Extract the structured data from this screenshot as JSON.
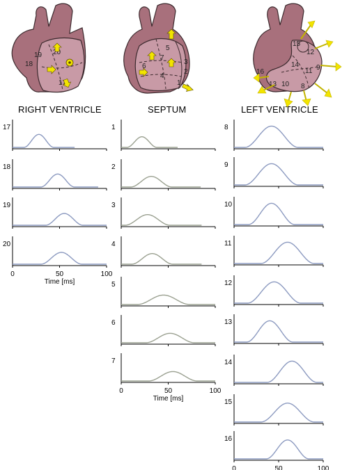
{
  "titles": {
    "right": "RIGHT VENTRICLE",
    "septum": "SEPTUM",
    "left": "LEFT VENTRICLE"
  },
  "axis": {
    "xlabel": "Time [ms]",
    "ticks": [
      "0",
      "50",
      "100"
    ],
    "xlim": [
      0,
      100
    ]
  },
  "colors": {
    "heart_body": "#a8707c",
    "heart_region": "#c89aa6",
    "outline": "#3c2a2e",
    "arrow": "#f2e400",
    "curve_blue": "#8c9ac0",
    "curve_gray": "#9aa090"
  },
  "hearts": {
    "right": {
      "labels": [
        "17",
        "18",
        "19",
        "20"
      ]
    },
    "septum": {
      "labels": [
        "1",
        "2",
        "3",
        "4",
        "5",
        "6",
        "7"
      ]
    },
    "left": {
      "labels": [
        "8",
        "9",
        "10",
        "11",
        "12",
        "13",
        "14",
        "15",
        "16"
      ]
    }
  },
  "chart_data": [
    {
      "type": "line",
      "group": "RIGHT VENTRICLE",
      "xlabel": "Time [ms]",
      "xlim": [
        0,
        100
      ],
      "series": [
        {
          "name": "17",
          "peak_ms": 28,
          "width_ms": 16,
          "amp": 0.55
        },
        {
          "name": "18",
          "peak_ms": 48,
          "width_ms": 18,
          "amp": 0.55
        },
        {
          "name": "19",
          "peak_ms": 55,
          "width_ms": 20,
          "amp": 0.5
        },
        {
          "name": "20",
          "peak_ms": 52,
          "width_ms": 22,
          "amp": 0.5
        }
      ]
    },
    {
      "type": "line",
      "group": "SEPTUM",
      "xlabel": "Time [ms]",
      "xlim": [
        0,
        100
      ],
      "series": [
        {
          "name": "1",
          "peak_ms": 22,
          "width_ms": 16,
          "amp": 0.45
        },
        {
          "name": "2",
          "peak_ms": 32,
          "width_ms": 22,
          "amp": 0.45
        },
        {
          "name": "3",
          "peak_ms": 28,
          "width_ms": 24,
          "amp": 0.45
        },
        {
          "name": "4",
          "peak_ms": 33,
          "width_ms": 22,
          "amp": 0.45
        },
        {
          "name": "5",
          "peak_ms": 45,
          "width_ms": 28,
          "amp": 0.4
        },
        {
          "name": "6",
          "peak_ms": 52,
          "width_ms": 26,
          "amp": 0.4
        },
        {
          "name": "7",
          "peak_ms": 55,
          "width_ms": 26,
          "amp": 0.4
        }
      ]
    },
    {
      "type": "line",
      "group": "LEFT VENTRICLE",
      "xlabel": "Time [ms]",
      "xlim": [
        0,
        100
      ],
      "series": [
        {
          "name": "8",
          "peak_ms": 42,
          "width_ms": 30,
          "amp": 0.9
        },
        {
          "name": "9",
          "peak_ms": 42,
          "width_ms": 30,
          "amp": 0.9
        },
        {
          "name": "10",
          "peak_ms": 42,
          "width_ms": 26,
          "amp": 0.9
        },
        {
          "name": "11",
          "peak_ms": 60,
          "width_ms": 30,
          "amp": 0.9
        },
        {
          "name": "12",
          "peak_ms": 45,
          "width_ms": 30,
          "amp": 0.9
        },
        {
          "name": "13",
          "peak_ms": 40,
          "width_ms": 26,
          "amp": 0.9
        },
        {
          "name": "14",
          "peak_ms": 65,
          "width_ms": 28,
          "amp": 0.9
        },
        {
          "name": "15",
          "peak_ms": 60,
          "width_ms": 30,
          "amp": 0.8
        },
        {
          "name": "16",
          "peak_ms": 60,
          "width_ms": 24,
          "amp": 0.8
        }
      ]
    }
  ]
}
